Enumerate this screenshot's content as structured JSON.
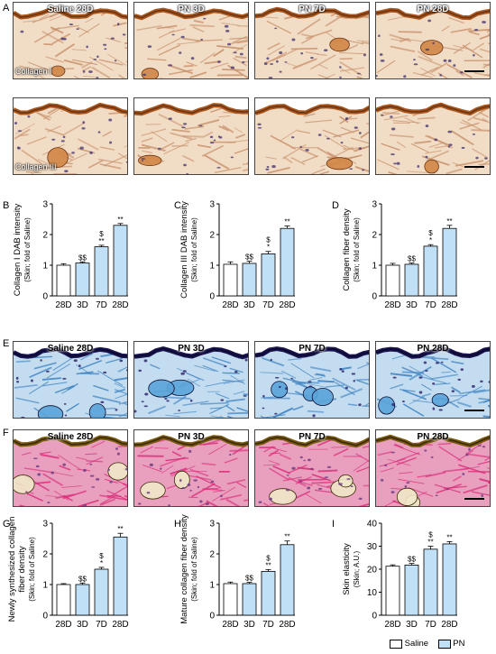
{
  "panels": {
    "A": "A",
    "B": "B",
    "C": "C",
    "D": "D",
    "E": "E",
    "F": "F",
    "G": "G",
    "H": "H",
    "I": "I"
  },
  "micrograph_rows": [
    {
      "id": "A-row1",
      "stain": "Collagen I",
      "groups": [
        "Saline 28D",
        "PN 3D",
        "PN 7D",
        "PN 28D"
      ],
      "tone": "dab"
    },
    {
      "id": "A-row2",
      "stain": "Collagen III",
      "groups": [
        "Saline 28D",
        "PN 3D",
        "PN 7D",
        "PN 28D"
      ],
      "tone": "dab"
    },
    {
      "id": "E",
      "stain": "",
      "groups": [
        "Saline 28D",
        "PN 3D",
        "PN 7D",
        "PN 28D"
      ],
      "tone": "mt"
    },
    {
      "id": "F",
      "stain": "",
      "groups": [
        "Saline 28D",
        "PN 3D",
        "PN 7D",
        "PN 28D"
      ],
      "tone": "hbq"
    }
  ],
  "colors": {
    "saline": "#ffffff",
    "pn": "#bfe0f7",
    "edge": "#000000"
  },
  "legend": {
    "saline": "Saline",
    "pn": "PN"
  },
  "chart_data": [
    {
      "id": "B",
      "type": "bar",
      "categories": [
        "28D",
        "3D",
        "7D",
        "28D"
      ],
      "values": [
        1.0,
        1.07,
        1.6,
        2.3
      ],
      "errors": [
        0.05,
        0.04,
        0.05,
        0.06
      ],
      "ylim": [
        0,
        3
      ],
      "yticks": [
        "0",
        "1",
        "2",
        "3"
      ],
      "ylabel": "Collagen I DAB intensity",
      "ylabel2": "(Skin; fold of Saline)",
      "annotations": [
        [
          "",
          ""
        ],
        [
          "$$",
          ""
        ],
        [
          "$",
          "**"
        ],
        [
          "**",
          ""
        ]
      ]
    },
    {
      "id": "C",
      "type": "bar",
      "categories": [
        "28D",
        "3D",
        "7D",
        "28D"
      ],
      "values": [
        1.03,
        1.06,
        1.37,
        2.2
      ],
      "errors": [
        0.08,
        0.07,
        0.08,
        0.08
      ],
      "ylim": [
        0,
        3
      ],
      "yticks": [
        "0",
        "1",
        "2",
        "3"
      ],
      "ylabel": "Collagen III DAB intensity",
      "ylabel2": "(Skin; fold of Saline)",
      "annotations": [
        [
          "",
          ""
        ],
        [
          "$$",
          ""
        ],
        [
          "$",
          "*"
        ],
        [
          "**",
          ""
        ]
      ]
    },
    {
      "id": "D",
      "type": "bar",
      "categories": [
        "28D",
        "3D",
        "7D",
        "28D"
      ],
      "values": [
        1.0,
        1.03,
        1.62,
        2.2
      ],
      "errors": [
        0.06,
        0.04,
        0.05,
        0.1
      ],
      "ylim": [
        0,
        3
      ],
      "yticks": [
        "0",
        "1",
        "2",
        "3"
      ],
      "ylabel": "Collagen fiber density",
      "ylabel2": "(Skin; fold of Saline)",
      "annotations": [
        [
          "",
          ""
        ],
        [
          "$$",
          ""
        ],
        [
          "$",
          "*"
        ],
        [
          "**",
          ""
        ]
      ]
    },
    {
      "id": "G",
      "type": "bar",
      "categories": [
        "28D",
        "3D",
        "7D",
        "28D"
      ],
      "values": [
        1.0,
        1.0,
        1.5,
        2.55
      ],
      "errors": [
        0.03,
        0.05,
        0.06,
        0.12
      ],
      "ylim": [
        0,
        3
      ],
      "yticks": [
        "0",
        "1",
        "2",
        "3"
      ],
      "ylabel": "Newly synthesized collagen",
      "ylabel2": "fiber density",
      "ylabel3": "(Skin; fold of Saline)",
      "annotations": [
        [
          "",
          ""
        ],
        [
          "$$",
          ""
        ],
        [
          "$",
          "*"
        ],
        [
          "**",
          ""
        ]
      ]
    },
    {
      "id": "H",
      "type": "bar",
      "categories": [
        "28D",
        "3D",
        "7D",
        "28D"
      ],
      "values": [
        1.03,
        1.03,
        1.43,
        2.3
      ],
      "errors": [
        0.05,
        0.04,
        0.06,
        0.12
      ],
      "ylim": [
        0,
        3
      ],
      "yticks": [
        "0",
        "1",
        "2",
        "3"
      ],
      "ylabel": "Mature collagen fiber density",
      "ylabel2": "(Skin; fold of Saline)",
      "annotations": [
        [
          "",
          ""
        ],
        [
          "$$",
          ""
        ],
        [
          "$",
          "**"
        ],
        [
          "**",
          ""
        ]
      ]
    },
    {
      "id": "I",
      "type": "bar",
      "categories": [
        "28D",
        "3D",
        "7D",
        "28D"
      ],
      "values": [
        21.3,
        21.8,
        28.7,
        31.0
      ],
      "errors": [
        0.6,
        0.7,
        1.3,
        1.0
      ],
      "ylim": [
        0,
        40
      ],
      "yticks": [
        "0",
        "10",
        "20",
        "30",
        "40"
      ],
      "ylabel": "Skin elasticity",
      "ylabel2": "(Skin; A.U.)",
      "annotations": [
        [
          "",
          ""
        ],
        [
          "$$",
          ""
        ],
        [
          "$",
          "**"
        ],
        [
          "**",
          ""
        ]
      ]
    }
  ]
}
